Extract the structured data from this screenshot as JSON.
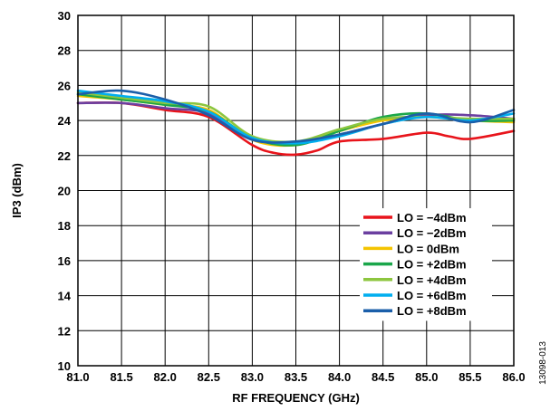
{
  "chart_data": {
    "type": "line",
    "title": "",
    "xlabel": "RF FREQUENCY (GHz)",
    "ylabel": "IP3 (dBm)",
    "xlim": [
      81.0,
      86.0
    ],
    "ylim": [
      10,
      30
    ],
    "xticks": [
      "81.0",
      "81.5",
      "82.0",
      "82.5",
      "83.0",
      "83.5",
      "84.0",
      "84.5",
      "85.0",
      "85.5",
      "86.0"
    ],
    "yticks": [
      "10",
      "12",
      "14",
      "16",
      "18",
      "20",
      "22",
      "24",
      "26",
      "28",
      "30"
    ],
    "grid": true,
    "legend_position": "lower-right",
    "series": [
      {
        "name": "LO = −4dBm",
        "color": "#e8141b",
        "x": [
          81.0,
          81.5,
          82.0,
          82.5,
          83.0,
          83.25,
          83.5,
          83.75,
          84.0,
          84.5,
          85.0,
          85.25,
          85.5,
          86.0
        ],
        "y": [
          25.0,
          25.0,
          24.6,
          24.2,
          22.6,
          22.15,
          22.05,
          22.3,
          22.8,
          22.95,
          23.3,
          23.1,
          22.95,
          23.4
        ]
      },
      {
        "name": "LO = −2dBm",
        "color": "#6b3fa0",
        "x": [
          81.0,
          81.5,
          82.0,
          82.5,
          83.0,
          83.5,
          84.0,
          84.5,
          85.0,
          85.5,
          86.0
        ],
        "y": [
          25.0,
          25.0,
          24.7,
          24.4,
          22.9,
          22.7,
          23.2,
          23.8,
          24.3,
          24.3,
          24.1
        ]
      },
      {
        "name": "LO = 0dBm",
        "color": "#f4c400",
        "x": [
          81.0,
          81.5,
          82.0,
          82.5,
          83.0,
          83.5,
          84.0,
          84.5,
          85.0,
          85.5,
          86.0
        ],
        "y": [
          25.4,
          25.2,
          24.9,
          24.6,
          22.9,
          22.6,
          23.4,
          24.0,
          24.2,
          24.0,
          23.9
        ]
      },
      {
        "name": "LO = +2dBm",
        "color": "#1aa64a",
        "x": [
          81.0,
          81.5,
          82.0,
          82.5,
          83.0,
          83.5,
          84.0,
          84.5,
          85.0,
          85.5,
          86.0
        ],
        "y": [
          25.5,
          25.2,
          24.9,
          24.5,
          23.0,
          22.6,
          23.4,
          24.2,
          24.4,
          24.0,
          24.0
        ]
      },
      {
        "name": "LO = +4dBm",
        "color": "#8dc63f",
        "x": [
          81.0,
          81.5,
          82.0,
          82.5,
          83.0,
          83.5,
          84.0,
          84.5,
          85.0,
          85.5,
          86.0
        ],
        "y": [
          25.6,
          25.3,
          25.0,
          24.8,
          23.1,
          22.8,
          23.5,
          24.1,
          24.2,
          24.1,
          24.1
        ]
      },
      {
        "name": "LO = +6dBm",
        "color": "#00aeef",
        "x": [
          81.0,
          81.5,
          82.0,
          82.5,
          83.0,
          83.5,
          84.0,
          84.5,
          85.0,
          85.5,
          86.0
        ],
        "y": [
          25.7,
          25.4,
          25.1,
          24.5,
          23.0,
          22.7,
          23.1,
          23.8,
          24.2,
          24.0,
          24.4
        ]
      },
      {
        "name": "LO = +8dBm",
        "color": "#1b5faa",
        "x": [
          81.0,
          81.5,
          82.0,
          82.5,
          83.0,
          83.5,
          84.0,
          84.5,
          85.0,
          85.5,
          86.0
        ],
        "y": [
          25.5,
          25.7,
          25.2,
          24.3,
          22.9,
          22.8,
          23.2,
          23.8,
          24.4,
          23.9,
          24.6
        ]
      }
    ],
    "figure_id": "13098-013"
  }
}
